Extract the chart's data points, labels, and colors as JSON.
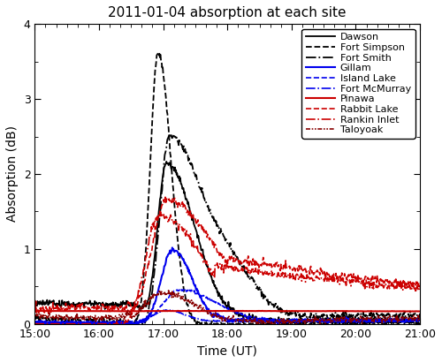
{
  "title": "2011-01-04 absorption at each site",
  "xlabel": "Time (UT)",
  "ylabel": "Absorption (dB)",
  "xlim_hours": [
    15,
    21
  ],
  "ylim": [
    0,
    4
  ],
  "yticks": [
    0,
    1,
    2,
    3,
    4
  ],
  "series": [
    {
      "name": "Dawson",
      "color": "#000000",
      "linestyle": "solid",
      "linewidth": 1.3
    },
    {
      "name": "Fort Simpson",
      "color": "#000000",
      "linestyle": "dashed",
      "linewidth": 1.3
    },
    {
      "name": "Fort Smith",
      "color": "#000000",
      "linestyle": "dashdot",
      "linewidth": 1.3
    },
    {
      "name": "Gillam",
      "color": "#0000ee",
      "linestyle": "solid",
      "linewidth": 1.5
    },
    {
      "name": "Island Lake",
      "color": "#0000ee",
      "linestyle": "dashed",
      "linewidth": 1.2
    },
    {
      "name": "Fort McMurray",
      "color": "#0000ee",
      "linestyle": "dashdot",
      "linewidth": 1.2
    },
    {
      "name": "Pinawa",
      "color": "#cc0000",
      "linestyle": "solid",
      "linewidth": 1.5
    },
    {
      "name": "Rabbit Lake",
      "color": "#cc0000",
      "linestyle": "dashed",
      "linewidth": 1.2
    },
    {
      "name": "Rankin Inlet",
      "color": "#cc0000",
      "linestyle": "dashdot",
      "linewidth": 1.2
    },
    {
      "name": "Taloyoak",
      "color": "#880000",
      "linestyle": "dashdotdot",
      "linewidth": 1.2
    }
  ],
  "background_color": "#ffffff",
  "legend_fontsize": 8,
  "title_fontsize": 11
}
